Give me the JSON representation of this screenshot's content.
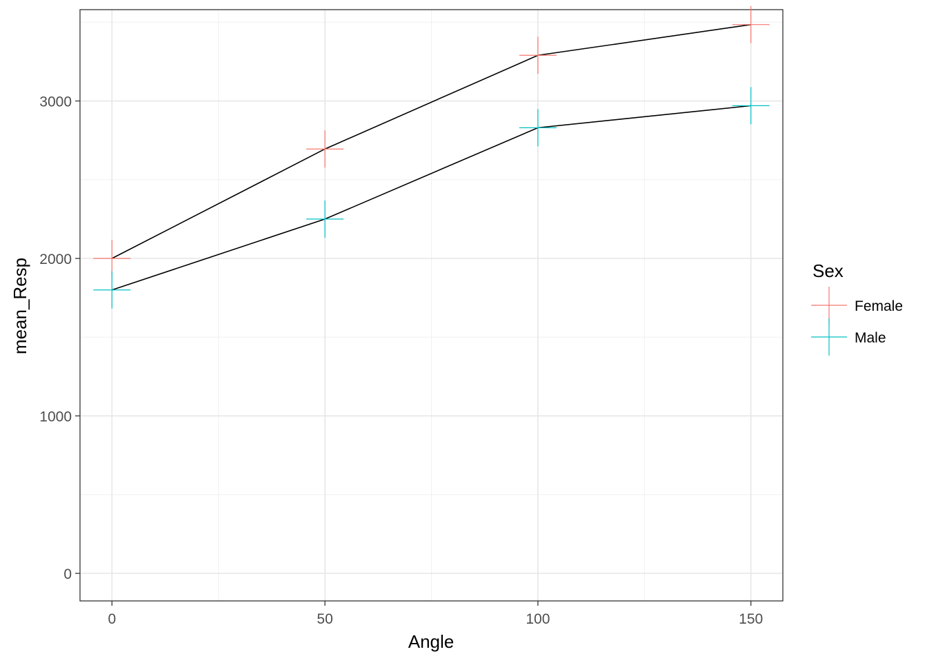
{
  "chart_data": {
    "type": "line",
    "title": "",
    "xlabel": "Angle",
    "ylabel": "mean_Resp",
    "xlim": [
      -7.5,
      157.5
    ],
    "ylim": [
      -175,
      3580
    ],
    "x_ticks": [
      0,
      50,
      100,
      150
    ],
    "x_tick_labels": [
      "0",
      "50",
      "100",
      "150"
    ],
    "x_minor": [
      25,
      75,
      125
    ],
    "y_ticks": [
      0,
      1000,
      2000,
      3000
    ],
    "y_tick_labels": [
      "0",
      "1000",
      "2000",
      "3000"
    ],
    "y_minor": [
      500,
      1500,
      2500,
      3500
    ],
    "grid": true,
    "legend": {
      "title": "Sex",
      "position": "right"
    },
    "x": [
      0,
      50,
      100,
      150
    ],
    "series": [
      {
        "name": "Female",
        "color": "#F8766D",
        "marker": "plus",
        "line_color": "#000000",
        "values": [
          2000,
          2695,
          3290,
          3485
        ]
      },
      {
        "name": "Male",
        "color": "#00BFC4",
        "marker": "plus",
        "line_color": "#000000",
        "values": [
          1800,
          2250,
          2830,
          2970
        ]
      }
    ]
  }
}
